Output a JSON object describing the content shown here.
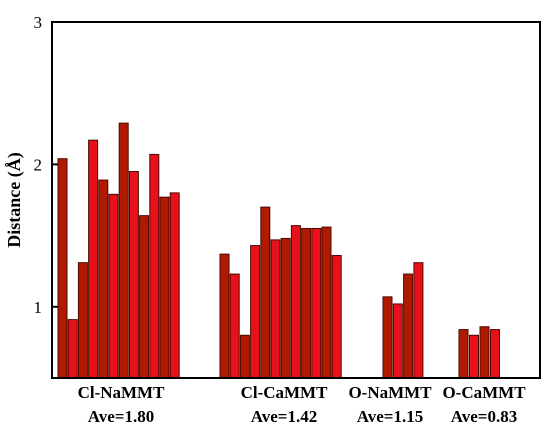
{
  "chart_data": {
    "type": "bar",
    "title": "",
    "xlabel": "",
    "ylabel": "Distance (Å)",
    "ylim": [
      0.5,
      3
    ],
    "yticks": [
      1,
      2,
      3
    ],
    "grid": false,
    "legend": "none",
    "colors": [
      "#b01a00",
      "#e8111b"
    ],
    "groups": [
      {
        "name": "Cl-NaMMT",
        "average_label": "Ave=1.80",
        "values": [
          2.04,
          0.91,
          1.31,
          2.17,
          1.89,
          1.79,
          2.29,
          1.95,
          1.64,
          2.07,
          1.77,
          1.8
        ]
      },
      {
        "name": "Cl-CaMMT",
        "average_label": "Ave=1.42",
        "values": [
          1.37,
          1.23,
          0.8,
          1.43,
          1.7,
          1.47,
          1.48,
          1.57,
          1.55,
          1.55,
          1.56,
          1.36
        ]
      },
      {
        "name": "O-NaMMT",
        "average_label": "Ave=1.15",
        "values": [
          1.07,
          1.02,
          1.23,
          1.31
        ]
      },
      {
        "name": "O-CaMMT",
        "average_label": "Ave=0.83",
        "values": [
          0.84,
          0.8,
          0.86,
          0.84
        ]
      }
    ]
  }
}
